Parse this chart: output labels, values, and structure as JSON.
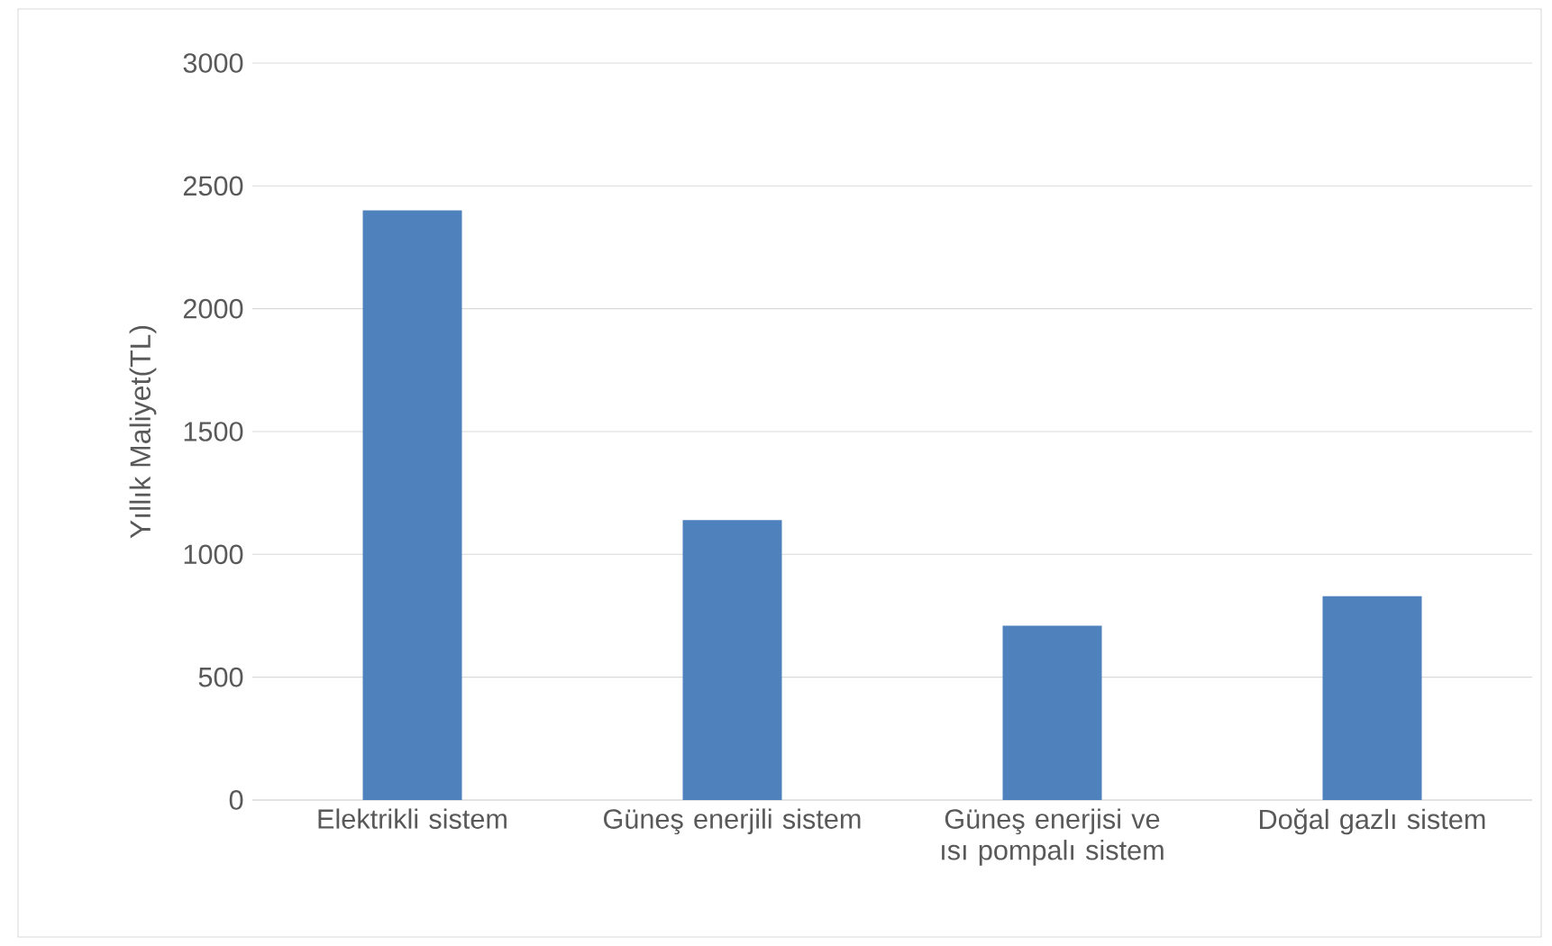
{
  "chart_data": {
    "type": "bar",
    "ylabel": "Yıllık Maliyet(TL)",
    "categories": [
      "Elektrikli sistem",
      "Güneş enerjili sistem",
      "Güneş enerjisi ve ısı pompalı sistem",
      "Doğal gazlı sistem"
    ],
    "values": [
      2400,
      1140,
      710,
      830
    ],
    "color": "#4f81bd",
    "ylim": [
      0,
      3000
    ],
    "yticks": [
      0,
      500,
      1000,
      1500,
      2000,
      2500,
      3000
    ],
    "grid": "y"
  }
}
